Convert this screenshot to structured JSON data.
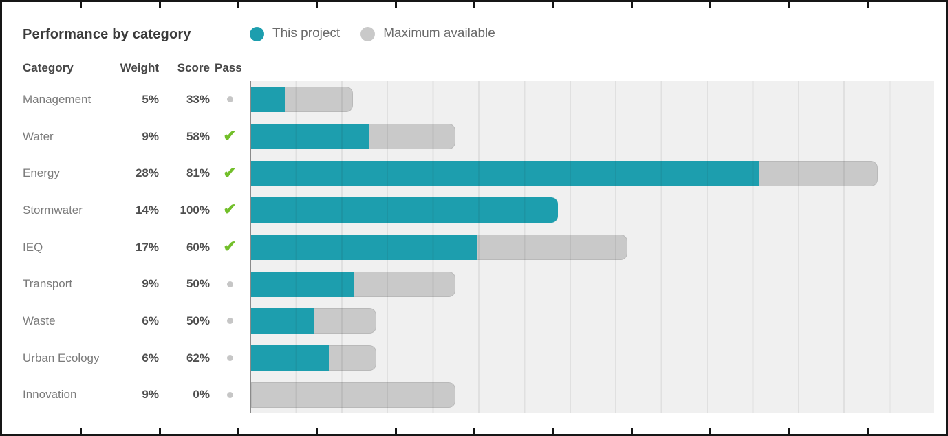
{
  "title": "Performance by category",
  "legend": {
    "items": [
      {
        "label": "This project",
        "color": "#1d9eae"
      },
      {
        "label": "Maximum available",
        "color": "#c9c9c9"
      }
    ]
  },
  "table": {
    "headers": {
      "category": "Category",
      "weight": "Weight",
      "score": "Score",
      "pass": "Pass"
    }
  },
  "rows": [
    {
      "category": "Management",
      "weight": "5%",
      "score": "33%",
      "pass": false
    },
    {
      "category": "Water",
      "weight": "9%",
      "score": "58%",
      "pass": true
    },
    {
      "category": "Energy",
      "weight": "28%",
      "score": "81%",
      "pass": true
    },
    {
      "category": "Stormwater",
      "weight": "14%",
      "score": "100%",
      "pass": true
    },
    {
      "category": "IEQ",
      "weight": "17%",
      "score": "60%",
      "pass": true
    },
    {
      "category": "Transport",
      "weight": "9%",
      "score": "50%",
      "pass": false
    },
    {
      "category": "Waste",
      "weight": "6%",
      "score": "50%",
      "pass": false
    },
    {
      "category": "Urban Ecology",
      "weight": "6%",
      "score": "62%",
      "pass": false
    },
    {
      "category": "Innovation",
      "weight": "9%",
      "score": "0%",
      "pass": false
    }
  ],
  "icons": {
    "check_glyph": "✔"
  },
  "chart_data": {
    "type": "bar",
    "orientation": "horizontal",
    "title": "Performance by category",
    "categories": [
      "Management",
      "Water",
      "Energy",
      "Stormwater",
      "IEQ",
      "Transport",
      "Waste",
      "Urban Ecology",
      "Innovation"
    ],
    "series": [
      {
        "name": "This project",
        "values": [
          1.7,
          5.2,
          22.7,
          14.0,
          10.2,
          4.5,
          3.0,
          3.7,
          0.0
        ]
      },
      {
        "name": "Maximum available",
        "values": [
          5,
          9,
          28,
          14,
          17,
          9,
          6,
          6,
          9
        ]
      }
    ],
    "weights_pct": [
      5,
      9,
      28,
      14,
      17,
      9,
      6,
      6,
      9
    ],
    "scores_pct": [
      33,
      58,
      81,
      100,
      60,
      50,
      50,
      62,
      0
    ],
    "pass": [
      false,
      true,
      true,
      true,
      true,
      false,
      false,
      false,
      false
    ],
    "bar_length_pct_est": [
      4.55,
      9.13,
      28.0,
      13.7,
      16.8,
      9.13,
      5.6,
      5.6,
      9.13
    ],
    "x_axis": {
      "min": 0,
      "max": 30.6,
      "gridline_step": 2.04,
      "tick_labels_visible": false,
      "grid": true
    },
    "legend_position": "top",
    "colors": {
      "this_project": "#1d9eae",
      "maximum_available": "#c9c9c9",
      "plot_background": "#f0f0f0",
      "gridline": "#e3e3e3",
      "axis": "#8a8a8a",
      "pass_check": "#72bf2a",
      "fail_dot": "#c6c6c6"
    }
  }
}
